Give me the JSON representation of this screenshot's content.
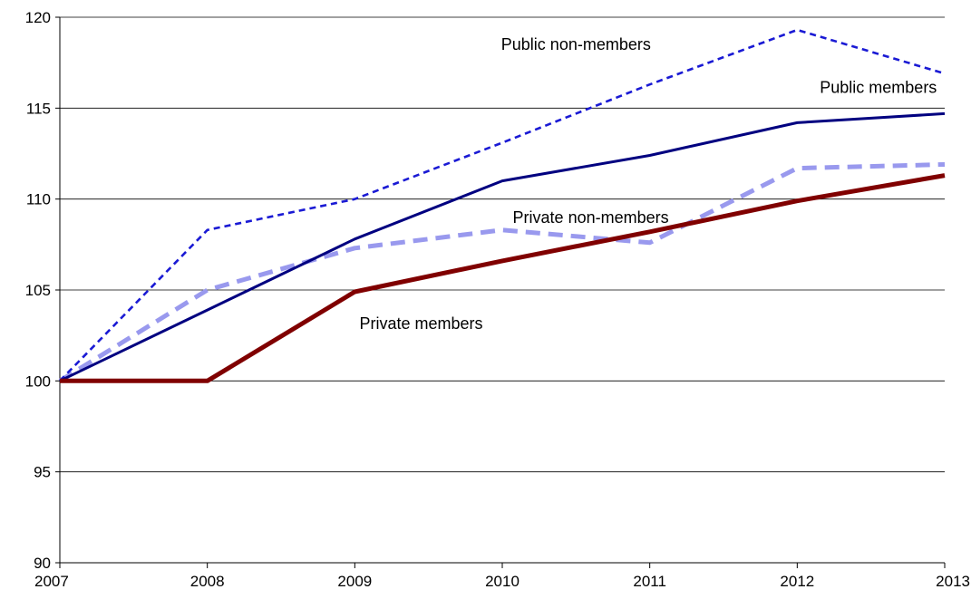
{
  "chart_data": {
    "type": "line",
    "title": "",
    "xlabel": "",
    "ylabel": "",
    "x": [
      2007,
      2008,
      2009,
      2010,
      2011,
      2012,
      2013
    ],
    "xlim": [
      2007,
      2013
    ],
    "ylim": [
      90,
      120
    ],
    "y_ticks": [
      90,
      95,
      100,
      105,
      110,
      115,
      120
    ],
    "x_tick_labels": [
      "2007",
      "2008",
      "2009",
      "2010",
      "2011",
      "2012",
      "2013"
    ],
    "y_tick_labels": [
      "90",
      "95",
      "100",
      "105",
      "110",
      "115",
      "120"
    ],
    "grid": "horizontal",
    "legend": "none (series labeled directly on chart)",
    "series": [
      {
        "name": "Public non-members",
        "values": [
          100,
          108.3,
          110.0,
          113.1,
          116.3,
          119.3,
          116.9
        ],
        "color": "#1a1ad4",
        "style": "dashed-thin"
      },
      {
        "name": "Public members",
        "values": [
          100,
          103.9,
          107.8,
          111.0,
          112.4,
          114.2,
          114.7
        ],
        "color": "#000080",
        "style": "solid-thin"
      },
      {
        "name": "Private non-members",
        "values": [
          100,
          105.0,
          107.3,
          108.3,
          107.6,
          111.7,
          111.9
        ],
        "color": "#9999ee",
        "style": "dashed-thick"
      },
      {
        "name": "Private members",
        "values": [
          100,
          100.0,
          104.9,
          106.6,
          108.2,
          109.9,
          111.3
        ],
        "color": "#800000",
        "style": "solid-thick"
      }
    ]
  }
}
